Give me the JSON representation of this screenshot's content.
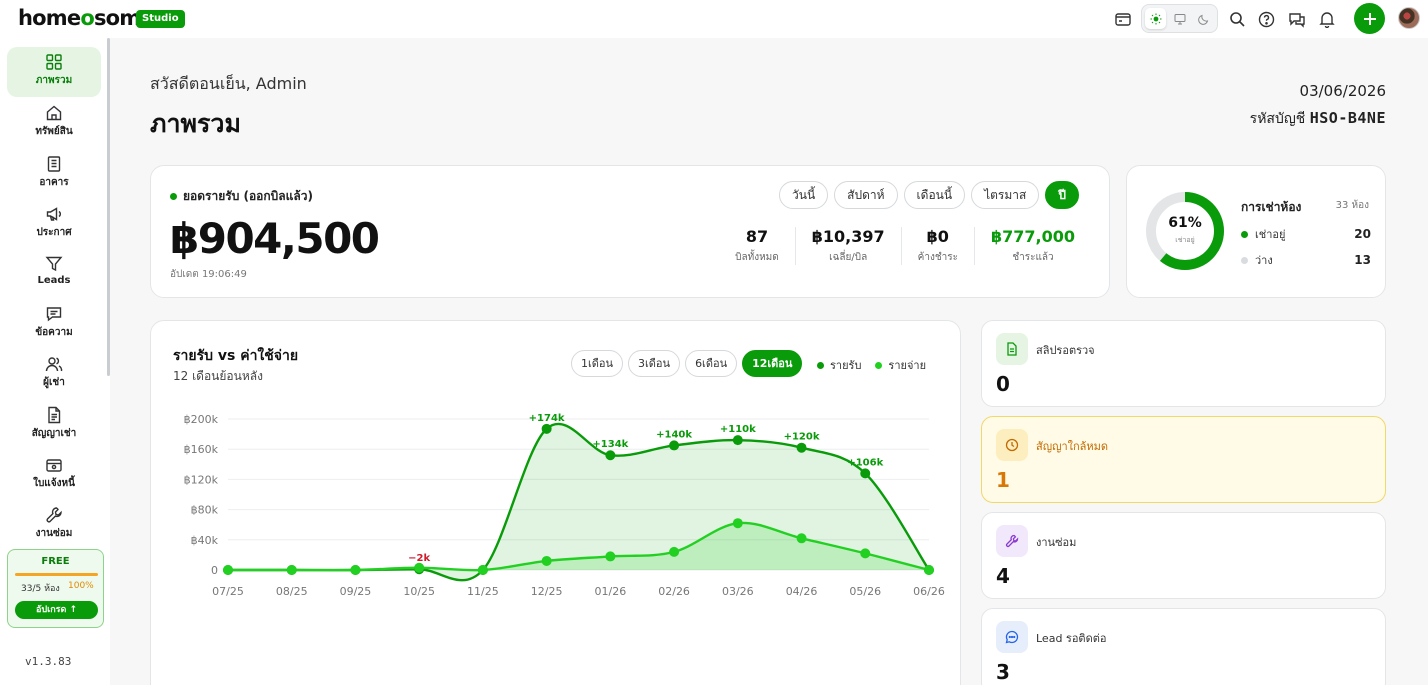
{
  "app": {
    "logo_home": "home",
    "logo_o": "o",
    "logo_rest": "some",
    "badge": "Studio"
  },
  "topbar": {
    "icons": [
      "wallet-icon",
      "sun-icon",
      "monitor-icon",
      "moon-icon",
      "search-icon",
      "help-icon",
      "chat-icon",
      "bell-icon",
      "plus-icon",
      "avatar"
    ]
  },
  "sidebar": {
    "items": [
      {
        "label": "ภาพรวม",
        "icon": "grid-icon",
        "active": true
      },
      {
        "label": "ทรัพย์สิน",
        "icon": "home-icon"
      },
      {
        "label": "อาคาร",
        "icon": "building-icon"
      },
      {
        "label": "ประกาศ",
        "icon": "megaphone-icon"
      },
      {
        "label": "Leads",
        "icon": "filter-icon"
      },
      {
        "label": "ข้อความ",
        "icon": "message-icon"
      },
      {
        "label": "ผู้เช่า",
        "icon": "users-icon"
      },
      {
        "label": "สัญญาเช่า",
        "icon": "contract-icon"
      },
      {
        "label": "ใบแจ้งหนี้",
        "icon": "invoice-icon"
      },
      {
        "label": "งานซ่อม",
        "icon": "wrench-icon"
      }
    ],
    "plan": {
      "name": "FREE",
      "usage": "33/5 ห้อง",
      "percent_label": "100%",
      "upgrade_label": "อัปเกรด ↑"
    },
    "version": "v1.3.83"
  },
  "header": {
    "greeting": "สวัสดีตอนเย็น, Admin",
    "title": "ภาพรวม",
    "date": "03/06/2026",
    "account_label": "รหัสบัญชี",
    "account_code": "HSO-B4NE"
  },
  "revenue": {
    "label": "ยอดรายรับ (ออกบิลแล้ว)",
    "amount": "฿904,500",
    "updated": "อัปเดต 19:06:49",
    "tabs": [
      "วันนี้",
      "สัปดาห์",
      "เดือนนี้",
      "ไตรมาส",
      "ปี"
    ],
    "active_tab": 4,
    "stats": [
      {
        "value": "87",
        "label": "บิลทั้งหมด"
      },
      {
        "value": "฿10,397",
        "label": "เฉลี่ย/บิล"
      },
      {
        "value": "฿0",
        "label": "ค้างชำระ"
      },
      {
        "value": "฿777,000",
        "label": "ชำระแล้ว",
        "green": true
      }
    ]
  },
  "occupancy": {
    "percent": 61,
    "percent_label": "61%",
    "sub": "เช่าอยู่",
    "title": "การเช่าห้อง",
    "total": "33 ห้อง",
    "rows": [
      {
        "label": "เช่าอยู่",
        "value": "20",
        "color": "#0a9b0a"
      },
      {
        "label": "ว่าง",
        "value": "13",
        "color": "#d9dcdf"
      }
    ]
  },
  "income_chart": {
    "title": "รายรับ vs ค่าใช้จ่าย",
    "subtitle": "12 เดือนย้อนหลัง",
    "ranges": [
      "1เดือน",
      "3เดือน",
      "6เดือน",
      "12เดือน"
    ],
    "active_range": 3,
    "legend": [
      {
        "label": "รายรับ",
        "color": "#0a9b0a"
      },
      {
        "label": "รายจ่าย",
        "color": "#22d022"
      }
    ]
  },
  "chart_data": {
    "type": "area",
    "categories": [
      "07/25",
      "08/25",
      "09/25",
      "10/25",
      "11/25",
      "12/25",
      "01/26",
      "02/26",
      "03/26",
      "04/26",
      "05/26",
      "06/26"
    ],
    "ylim": [
      0,
      200000
    ],
    "y_ticks": [
      0,
      40000,
      80000,
      120000,
      160000,
      200000
    ],
    "y_tick_labels": [
      "0",
      "฿40k",
      "฿80k",
      "฿120k",
      "฿160k",
      "฿200k"
    ],
    "series": [
      {
        "name": "รายรับ",
        "color": "#0a9b0a",
        "values": [
          0,
          0,
          0,
          1000,
          0,
          187000,
          152000,
          165000,
          172000,
          162000,
          128000,
          0
        ]
      },
      {
        "name": "รายจ่าย",
        "color": "#22d022",
        "values": [
          0,
          0,
          0,
          3000,
          0,
          12000,
          18000,
          24000,
          62000,
          42000,
          22000,
          0
        ]
      }
    ],
    "annotations": [
      {
        "index": 3,
        "label": "−2k",
        "color": "#d11a2a"
      },
      {
        "index": 5,
        "label": "+174k",
        "color": "#0a9b0a"
      },
      {
        "index": 6,
        "label": "+134k",
        "color": "#0a9b0a"
      },
      {
        "index": 7,
        "label": "+140k",
        "color": "#0a9b0a"
      },
      {
        "index": 8,
        "label": "+110k",
        "color": "#0a9b0a"
      },
      {
        "index": 9,
        "label": "+120k",
        "color": "#0a9b0a"
      },
      {
        "index": 10,
        "label": "+106k",
        "color": "#0a9b0a"
      }
    ]
  },
  "summary_cards": [
    {
      "label": "สลิปรอตรวจ",
      "value": "0",
      "icon": "document-icon",
      "variant": "green"
    },
    {
      "label": "สัญญาใกล้หมด",
      "value": "1",
      "icon": "clock-icon",
      "variant": "warn"
    },
    {
      "label": "งานซ่อม",
      "value": "4",
      "icon": "wrench-icon",
      "variant": "purple"
    },
    {
      "label": "Lead รอติดต่อ",
      "value": "3",
      "icon": "chat-bubble-icon",
      "variant": "blue"
    }
  ]
}
